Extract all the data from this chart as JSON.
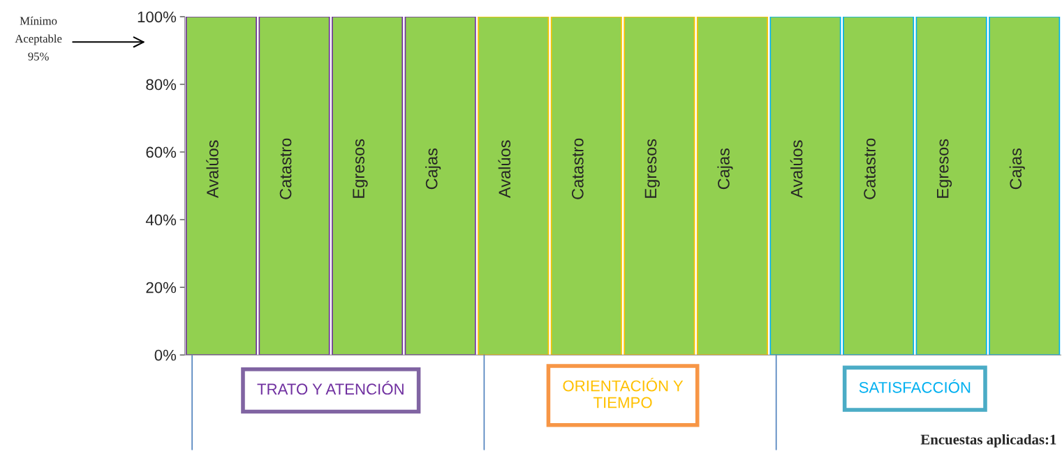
{
  "chart_data": {
    "type": "bar",
    "categories": [
      "Avalúos",
      "Catastro",
      "Egresos",
      "Cajas",
      "Avalúos",
      "Catastro",
      "Egresos",
      "Cajas",
      "Avalúos",
      "Catastro",
      "Egresos",
      "Cajas"
    ],
    "values": [
      100,
      100,
      100,
      100,
      100,
      100,
      100,
      100,
      100,
      100,
      100,
      100
    ],
    "color": "#92d050",
    "ylim": [
      0,
      100
    ],
    "yticks": [
      {
        "value": 0,
        "label": "0%"
      },
      {
        "value": 20,
        "label": "20%"
      },
      {
        "value": 40,
        "label": "40%"
      },
      {
        "value": 60,
        "label": "60%"
      },
      {
        "value": 80,
        "label": "80%"
      },
      {
        "value": 100,
        "label": "100%"
      }
    ],
    "grid": false,
    "legend": false,
    "tick_labels": "y",
    "annotations": [
      "Mínimo\nAceptable\n95%",
      "TRATO Y ATENCIÓN",
      "ORIENTACIÓN Y\nTIEMPO",
      "SATISFACCIÓN",
      "Encuestas aplicadas:1"
    ]
  }
}
